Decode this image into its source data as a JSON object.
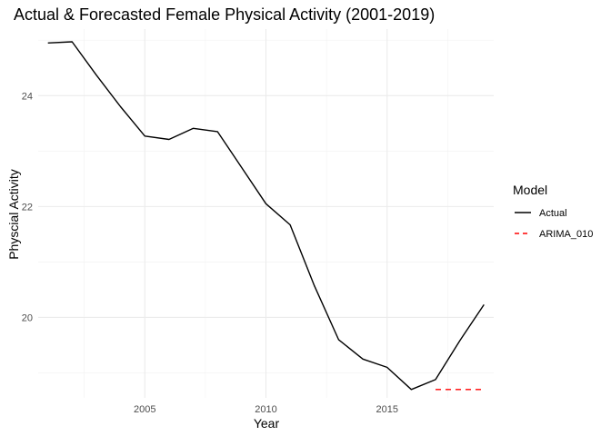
{
  "chart_data": {
    "type": "line",
    "title": "Actual & Forecasted Female Physical Activity (2001-2019)",
    "xlabel": "Year",
    "ylabel": "Physcial Activity",
    "xlim": [
      2000.6,
      2019.4
    ],
    "ylim": [
      18.55,
      25.2
    ],
    "x_ticks": [
      2005,
      2010,
      2015
    ],
    "y_ticks": [
      20,
      22,
      24
    ],
    "x_minor": [
      2002.5,
      2007.5,
      2012.5,
      2017.5
    ],
    "y_minor": [
      19,
      21,
      23,
      25
    ],
    "grid": true,
    "legend": {
      "title": "Model",
      "position": "right"
    },
    "series": [
      {
        "name": "Actual",
        "color": "#000000",
        "dash": "solid",
        "x": [
          2001,
          2002,
          2003,
          2004,
          2005,
          2006,
          2007,
          2008,
          2009,
          2010,
          2011,
          2012,
          2013,
          2014,
          2015,
          2016,
          2017,
          2018,
          2019
        ],
        "y": [
          24.95,
          24.97,
          24.37,
          23.8,
          23.27,
          23.21,
          23.41,
          23.35,
          22.7,
          22.05,
          21.67,
          20.57,
          19.6,
          19.25,
          19.1,
          18.7,
          18.88,
          19.58,
          20.23
        ]
      },
      {
        "name": "ARIMA_010",
        "color": "#ff0000",
        "dash": "dashed",
        "x": [
          2017,
          2018,
          2019
        ],
        "y": [
          18.7,
          18.7,
          18.7
        ]
      }
    ]
  }
}
